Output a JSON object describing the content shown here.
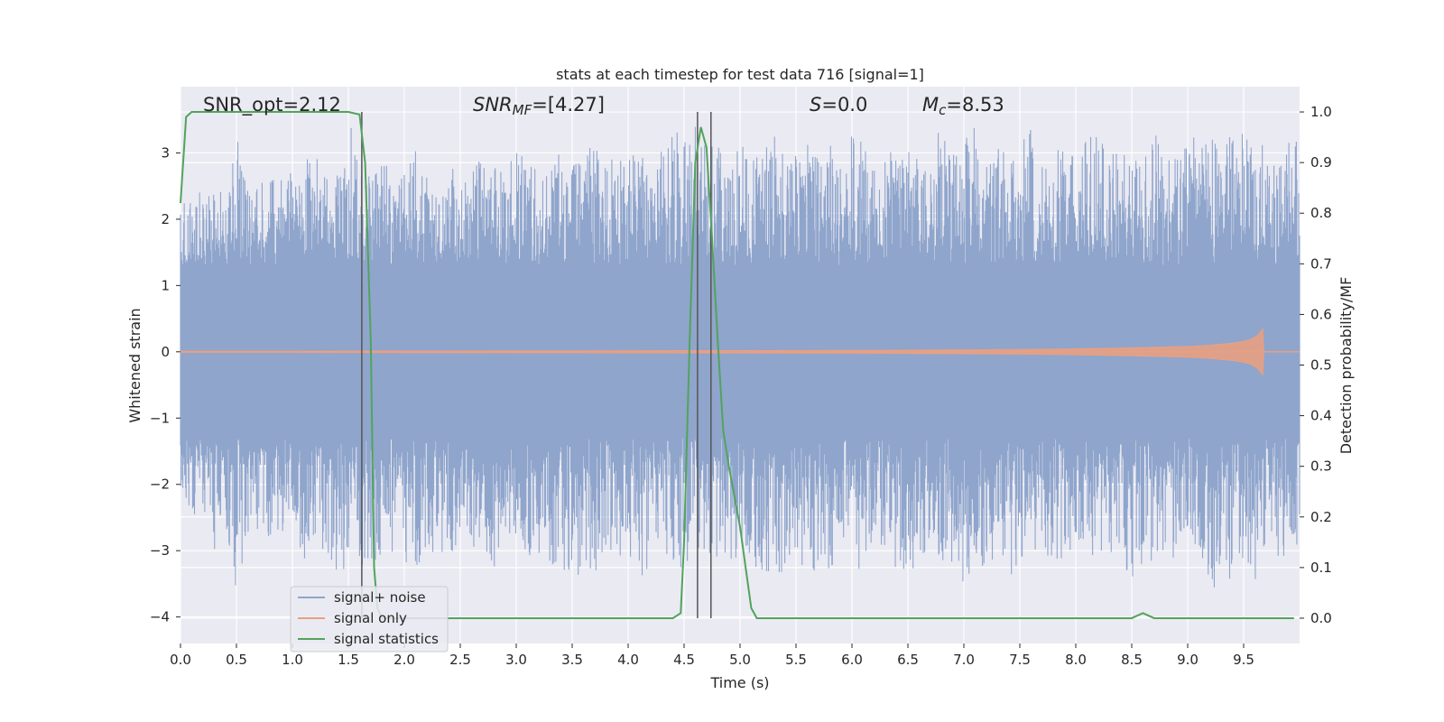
{
  "chart_data": {
    "type": "line",
    "title": "stats at each timestep for test data 716 [signal=1]",
    "xlabel": "Time (s)",
    "ylabel_left": "Whitened strain",
    "ylabel_right": "Detection probability/MF",
    "xlim": [
      0.0,
      10.0
    ],
    "ylim_left": [
      -4.4,
      4.0
    ],
    "ylim_right": [
      -0.05,
      1.05
    ],
    "x_ticks": [
      "0.0",
      "0.5",
      "1.0",
      "1.5",
      "2.0",
      "2.5",
      "3.0",
      "3.5",
      "4.0",
      "4.5",
      "5.0",
      "5.5",
      "6.0",
      "6.5",
      "7.0",
      "7.5",
      "8.0",
      "8.5",
      "9.0",
      "9.5"
    ],
    "x_tick_values": [
      0.0,
      0.5,
      1.0,
      1.5,
      2.0,
      2.5,
      3.0,
      3.5,
      4.0,
      4.5,
      5.0,
      5.5,
      6.0,
      6.5,
      7.0,
      7.5,
      8.0,
      8.5,
      9.0,
      9.5
    ],
    "y_ticks_left": [
      "−4",
      "−3",
      "−2",
      "−1",
      "0",
      "1",
      "2",
      "3"
    ],
    "y_tick_values_left": [
      -4,
      -3,
      -2,
      -1,
      0,
      1,
      2,
      3
    ],
    "y_ticks_right": [
      "0.0",
      "0.1",
      "0.2",
      "0.3",
      "0.4",
      "0.5",
      "0.6",
      "0.7",
      "0.8",
      "0.9",
      "1.0"
    ],
    "y_tick_values_right": [
      0.0,
      0.1,
      0.2,
      0.3,
      0.4,
      0.5,
      0.6,
      0.7,
      0.8,
      0.9,
      1.0
    ],
    "grid": true,
    "legend_position": "bottom-left",
    "annotations": {
      "snr_opt": "SNR_opt=2.12",
      "snr_mf_main": "SNR",
      "snr_mf_sub": "MF",
      "snr_mf_value": "=[4.27]",
      "s_main": "S",
      "s_value": "=0.0",
      "mc_main": "M",
      "mc_sub": "c",
      "mc_value": "=8.53"
    },
    "vertical_lines_x": [
      1.62,
      4.62,
      4.74
    ],
    "series": [
      {
        "name": "signal+ noise",
        "color": "#8fa5cc",
        "axis": "left",
        "envelope": {
          "x": [
            0.0,
            0.1,
            0.2,
            0.3,
            0.4,
            0.5,
            0.6,
            0.7,
            0.8,
            0.9,
            1.0,
            1.1,
            1.2,
            1.3,
            1.4,
            1.5,
            1.6,
            1.7,
            1.8,
            1.9,
            2.0,
            2.1,
            2.2,
            2.3,
            2.4,
            2.5,
            2.6,
            2.7,
            2.8,
            2.9,
            3.0,
            3.1,
            3.2,
            3.3,
            3.4,
            3.5,
            3.6,
            3.7,
            3.8,
            3.9,
            4.0,
            4.1,
            4.2,
            4.3,
            4.4,
            4.5,
            4.6,
            4.7,
            4.8,
            4.9,
            5.0,
            5.1,
            5.2,
            5.3,
            5.4,
            5.5,
            5.6,
            5.7,
            5.8,
            5.9,
            6.0,
            6.1,
            6.2,
            6.3,
            6.4,
            6.5,
            6.6,
            6.7,
            6.8,
            6.9,
            7.0,
            7.1,
            7.2,
            7.3,
            7.4,
            7.5,
            7.6,
            7.7,
            7.8,
            7.9,
            8.0,
            8.1,
            8.2,
            8.3,
            8.4,
            8.5,
            8.6,
            8.7,
            8.8,
            8.9,
            9.0,
            9.1,
            9.2,
            9.3,
            9.4,
            9.5,
            9.6,
            9.7,
            9.8,
            9.9,
            10.0
          ],
          "max": [
            2.5,
            2.4,
            2.5,
            2.4,
            2.5,
            3.3,
            2.6,
            2.6,
            2.7,
            2.6,
            2.8,
            2.9,
            3.0,
            2.6,
            2.8,
            3.5,
            3.0,
            2.6,
            2.9,
            2.8,
            2.7,
            3.1,
            2.8,
            2.6,
            2.9,
            2.6,
            2.7,
            3.1,
            2.8,
            2.7,
            3.1,
            2.9,
            2.8,
            2.9,
            3.2,
            2.8,
            3.0,
            3.2,
            2.8,
            3.0,
            2.9,
            3.4,
            2.8,
            3.1,
            3.4,
            3.3,
            3.4,
            3.2,
            3.1,
            3.0,
            3.2,
            2.9,
            3.1,
            3.3,
            3.0,
            3.2,
            3.5,
            3.1,
            3.3,
            2.9,
            3.3,
            3.2,
            2.8,
            3.1,
            2.9,
            3.2,
            3.3,
            3.0,
            3.5,
            3.1,
            3.2,
            3.4,
            3.0,
            3.3,
            2.9,
            3.2,
            3.4,
            3.0,
            3.1,
            3.3,
            3.1,
            3.2,
            3.4,
            2.9,
            3.3,
            3.0,
            3.1,
            3.3,
            3.2,
            3.5,
            3.4,
            3.1,
            3.3,
            3.0,
            3.5,
            3.3,
            3.2,
            3.5,
            3.2,
            3.3,
            3.2
          ],
          "min": [
            -2.6,
            -2.4,
            -2.7,
            -3.0,
            -2.6,
            -3.7,
            -2.8,
            -2.7,
            -2.8,
            -2.9,
            -2.7,
            -3.2,
            -3.0,
            -3.1,
            -3.8,
            -3.0,
            -3.2,
            -3.6,
            -3.0,
            -3.1,
            -3.2,
            -3.3,
            -3.0,
            -3.3,
            -3.1,
            -2.8,
            -3.0,
            -2.9,
            -3.3,
            -3.0,
            -2.9,
            -3.2,
            -3.2,
            -3.5,
            -3.0,
            -4.0,
            -3.1,
            -3.4,
            -3.0,
            -3.3,
            -3.1,
            -3.5,
            -3.2,
            -3.0,
            -3.4,
            -3.3,
            -2.9,
            -3.3,
            -3.1,
            -3.2,
            -3.1,
            -3.3,
            -3.4,
            -3.5,
            -3.3,
            -3.2,
            -3.7,
            -3.2,
            -3.3,
            -3.0,
            -3.3,
            -3.3,
            -3.0,
            -3.1,
            -3.3,
            -3.4,
            -3.2,
            -3.0,
            -3.4,
            -3.2,
            -3.6,
            -3.1,
            -3.3,
            -3.0,
            -3.4,
            -3.3,
            -3.1,
            -3.1,
            -3.2,
            -3.3,
            -3.1,
            -3.1,
            -3.3,
            -3.1,
            -3.2,
            -3.5,
            -3.3,
            -3.1,
            -3.0,
            -3.3,
            -3.2,
            -3.0,
            -3.5,
            -3.7,
            -3.4,
            -3.1,
            -3.5,
            -3.2,
            -3.1,
            -3.1,
            -3.0
          ]
        }
      },
      {
        "name": "signal only",
        "color": "#e8a082",
        "axis": "left",
        "envelope": {
          "x": [
            0.0,
            1.0,
            2.0,
            3.0,
            4.0,
            5.0,
            6.0,
            6.5,
            7.0,
            7.5,
            8.0,
            8.5,
            9.0,
            9.2,
            9.4,
            9.5,
            9.55,
            9.6,
            9.63,
            9.65,
            9.67,
            9.68
          ],
          "amp": [
            0.01,
            0.01,
            0.012,
            0.014,
            0.016,
            0.018,
            0.022,
            0.025,
            0.03,
            0.035,
            0.045,
            0.06,
            0.08,
            0.1,
            0.13,
            0.16,
            0.18,
            0.22,
            0.26,
            0.3,
            0.35,
            0.0
          ]
        }
      },
      {
        "name": "signal statistics",
        "color": "#52a35c",
        "axis": "right",
        "x": [
          0.0,
          0.05,
          0.1,
          0.2,
          0.5,
          1.0,
          1.5,
          1.6,
          1.65,
          1.7,
          1.73,
          1.76,
          1.8,
          1.85,
          2.0,
          2.5,
          3.0,
          3.5,
          4.0,
          4.4,
          4.47,
          4.5,
          4.55,
          4.6,
          4.65,
          4.7,
          4.75,
          4.8,
          4.85,
          4.9,
          4.95,
          5.0,
          5.05,
          5.1,
          5.15,
          5.2,
          5.3,
          6.0,
          7.0,
          8.0,
          8.5,
          8.6,
          8.7,
          9.0,
          9.5,
          9.7,
          9.95
        ],
        "y": [
          0.82,
          0.99,
          1.0,
          1.0,
          1.0,
          1.0,
          1.0,
          0.995,
          0.9,
          0.55,
          0.1,
          0.02,
          0.0,
          0.0,
          0.0,
          0.0,
          0.0,
          0.0,
          0.0,
          0.0,
          0.01,
          0.15,
          0.55,
          0.9,
          0.97,
          0.93,
          0.75,
          0.55,
          0.37,
          0.3,
          0.24,
          0.18,
          0.1,
          0.02,
          0.0,
          0.0,
          0.0,
          0.0,
          0.0,
          0.0,
          0.0,
          0.01,
          0.0,
          0.0,
          0.0,
          0.0,
          0.0
        ]
      }
    ]
  }
}
